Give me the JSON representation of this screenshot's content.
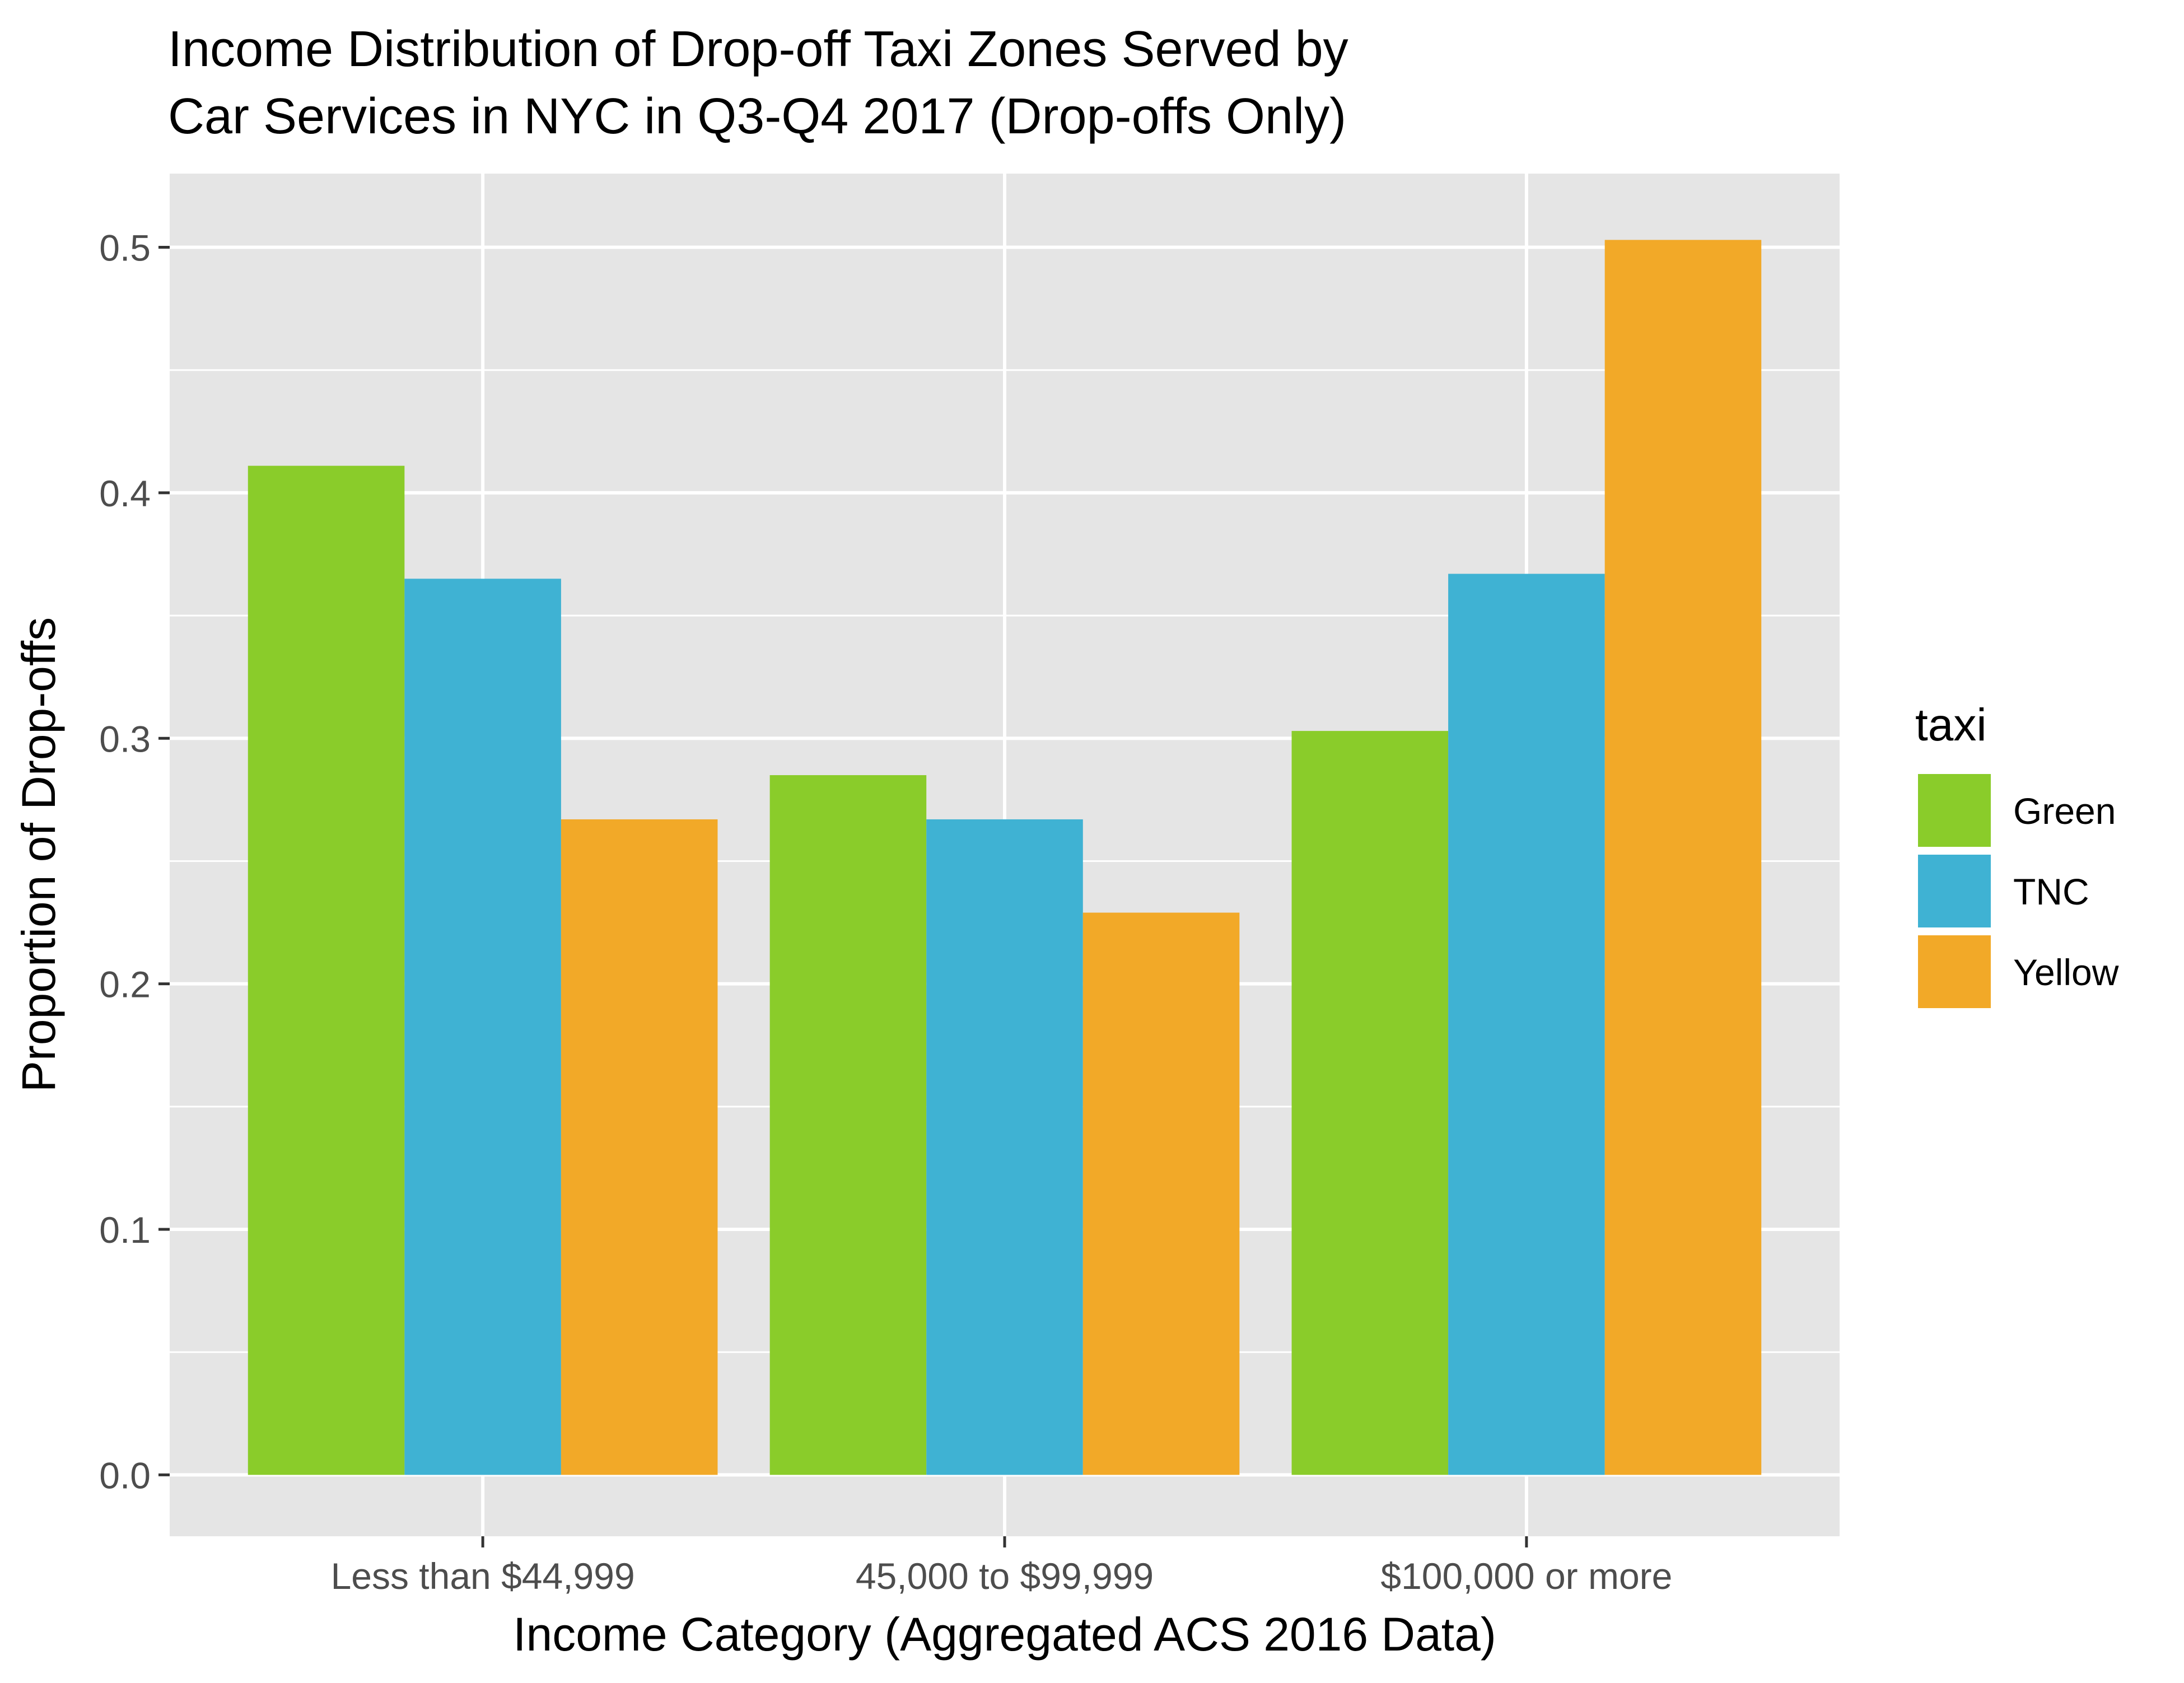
{
  "chart_data": {
    "type": "bar",
    "title_lines": [
      "Income Distribution of Drop-off Taxi Zones Served by",
      "Car Services in NYC in Q3-Q4 2017 (Drop-offs Only)"
    ],
    "xlabel": "Income Category (Aggregated ACS 2016 Data)",
    "ylabel": "Proportion of Drop-offs",
    "categories": [
      "Less than $44,999",
      "45,000 to $99,999",
      "$100,000 or more"
    ],
    "series": [
      {
        "name": "Green",
        "color": "#8ACC2A",
        "values": [
          0.411,
          0.285,
          0.303
        ]
      },
      {
        "name": "TNC",
        "color": "#3FB2D3",
        "values": [
          0.365,
          0.267,
          0.367
        ]
      },
      {
        "name": "Yellow",
        "color": "#F2A928",
        "values": [
          0.267,
          0.229,
          0.503
        ]
      }
    ],
    "ylim": [
      -0.025,
      0.53
    ],
    "yticks": [
      0.0,
      0.1,
      0.2,
      0.3,
      0.4,
      0.5
    ],
    "ytick_labels": [
      "0.0",
      "0.1",
      "0.2",
      "0.3",
      "0.4",
      "0.5"
    ],
    "grid": true,
    "legend": {
      "title": "taxi",
      "position": "right"
    },
    "panel_background": "#E5E5E5",
    "grid_color": "#FFFFFF"
  }
}
